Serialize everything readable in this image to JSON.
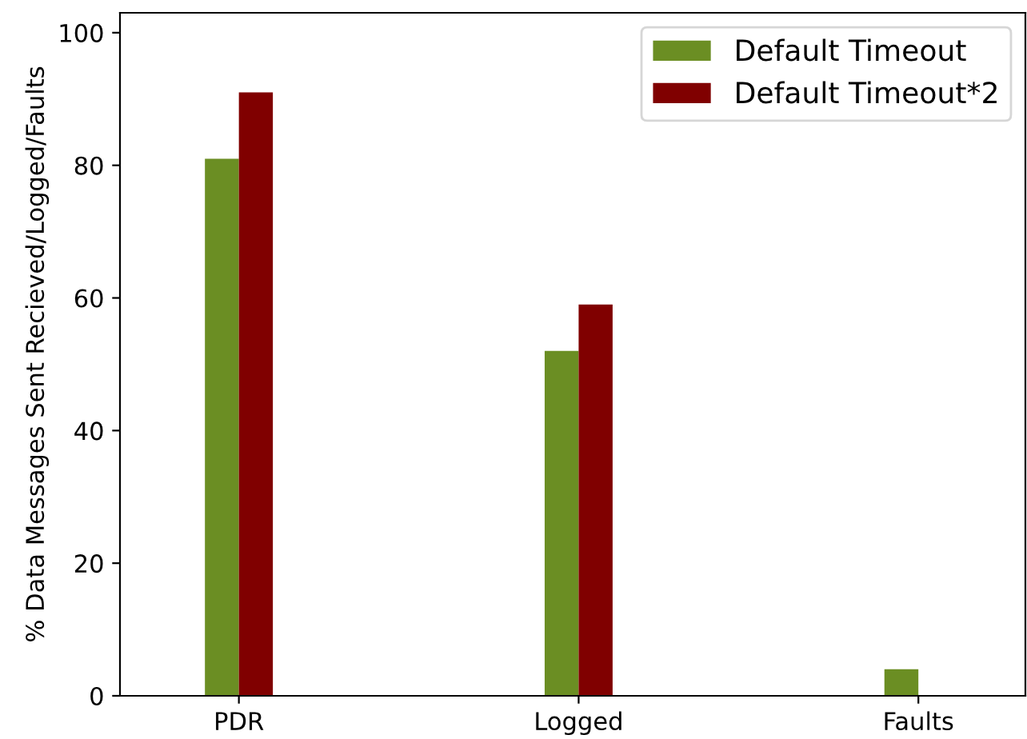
{
  "chart_data": {
    "type": "bar",
    "ylabel": "% Data Messages Sent Recieved/Logged/Faults",
    "categories": [
      "PDR",
      "Logged",
      "Faults"
    ],
    "series": [
      {
        "name": "Default Timeout",
        "color": "#6b8e23",
        "values": [
          81,
          52,
          4
        ]
      },
      {
        "name": "Default Timeout*2",
        "color": "#800000",
        "values": [
          91,
          59,
          0
        ]
      }
    ],
    "ylim": [
      0,
      103
    ],
    "yticks": [
      0,
      20,
      40,
      60,
      80,
      100
    ],
    "grid": false,
    "legend": "top right"
  }
}
